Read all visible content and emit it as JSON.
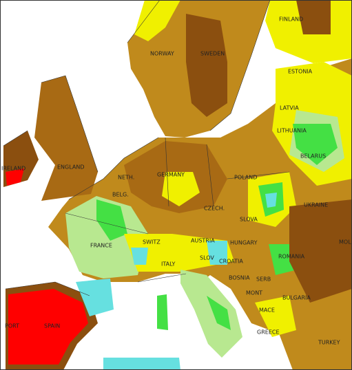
{
  "map": {
    "labels": [
      "FINLAND",
      "NORWAY",
      "SWEDEN",
      "ESTONIA",
      "LATVIA",
      "LITHUANIA",
      "BELARUS",
      "POLAND",
      "GERMANY",
      "NETH.",
      "BELG.",
      "CZECH.",
      "SLOVA",
      "UKRAINE",
      "FRANCE",
      "SWITZ",
      "AUSTRIA",
      "HUNGARY",
      "MOL",
      "ROMANIA",
      "ITALY",
      "SLOV",
      "CROATIA",
      "BOSNIA",
      "SERB",
      "MONT",
      "BULGARIA",
      "MACE",
      "GREECE",
      "TURKEY",
      "PORT",
      "SPAIN",
      "ENGLAND",
      "IRELAND"
    ]
  }
}
